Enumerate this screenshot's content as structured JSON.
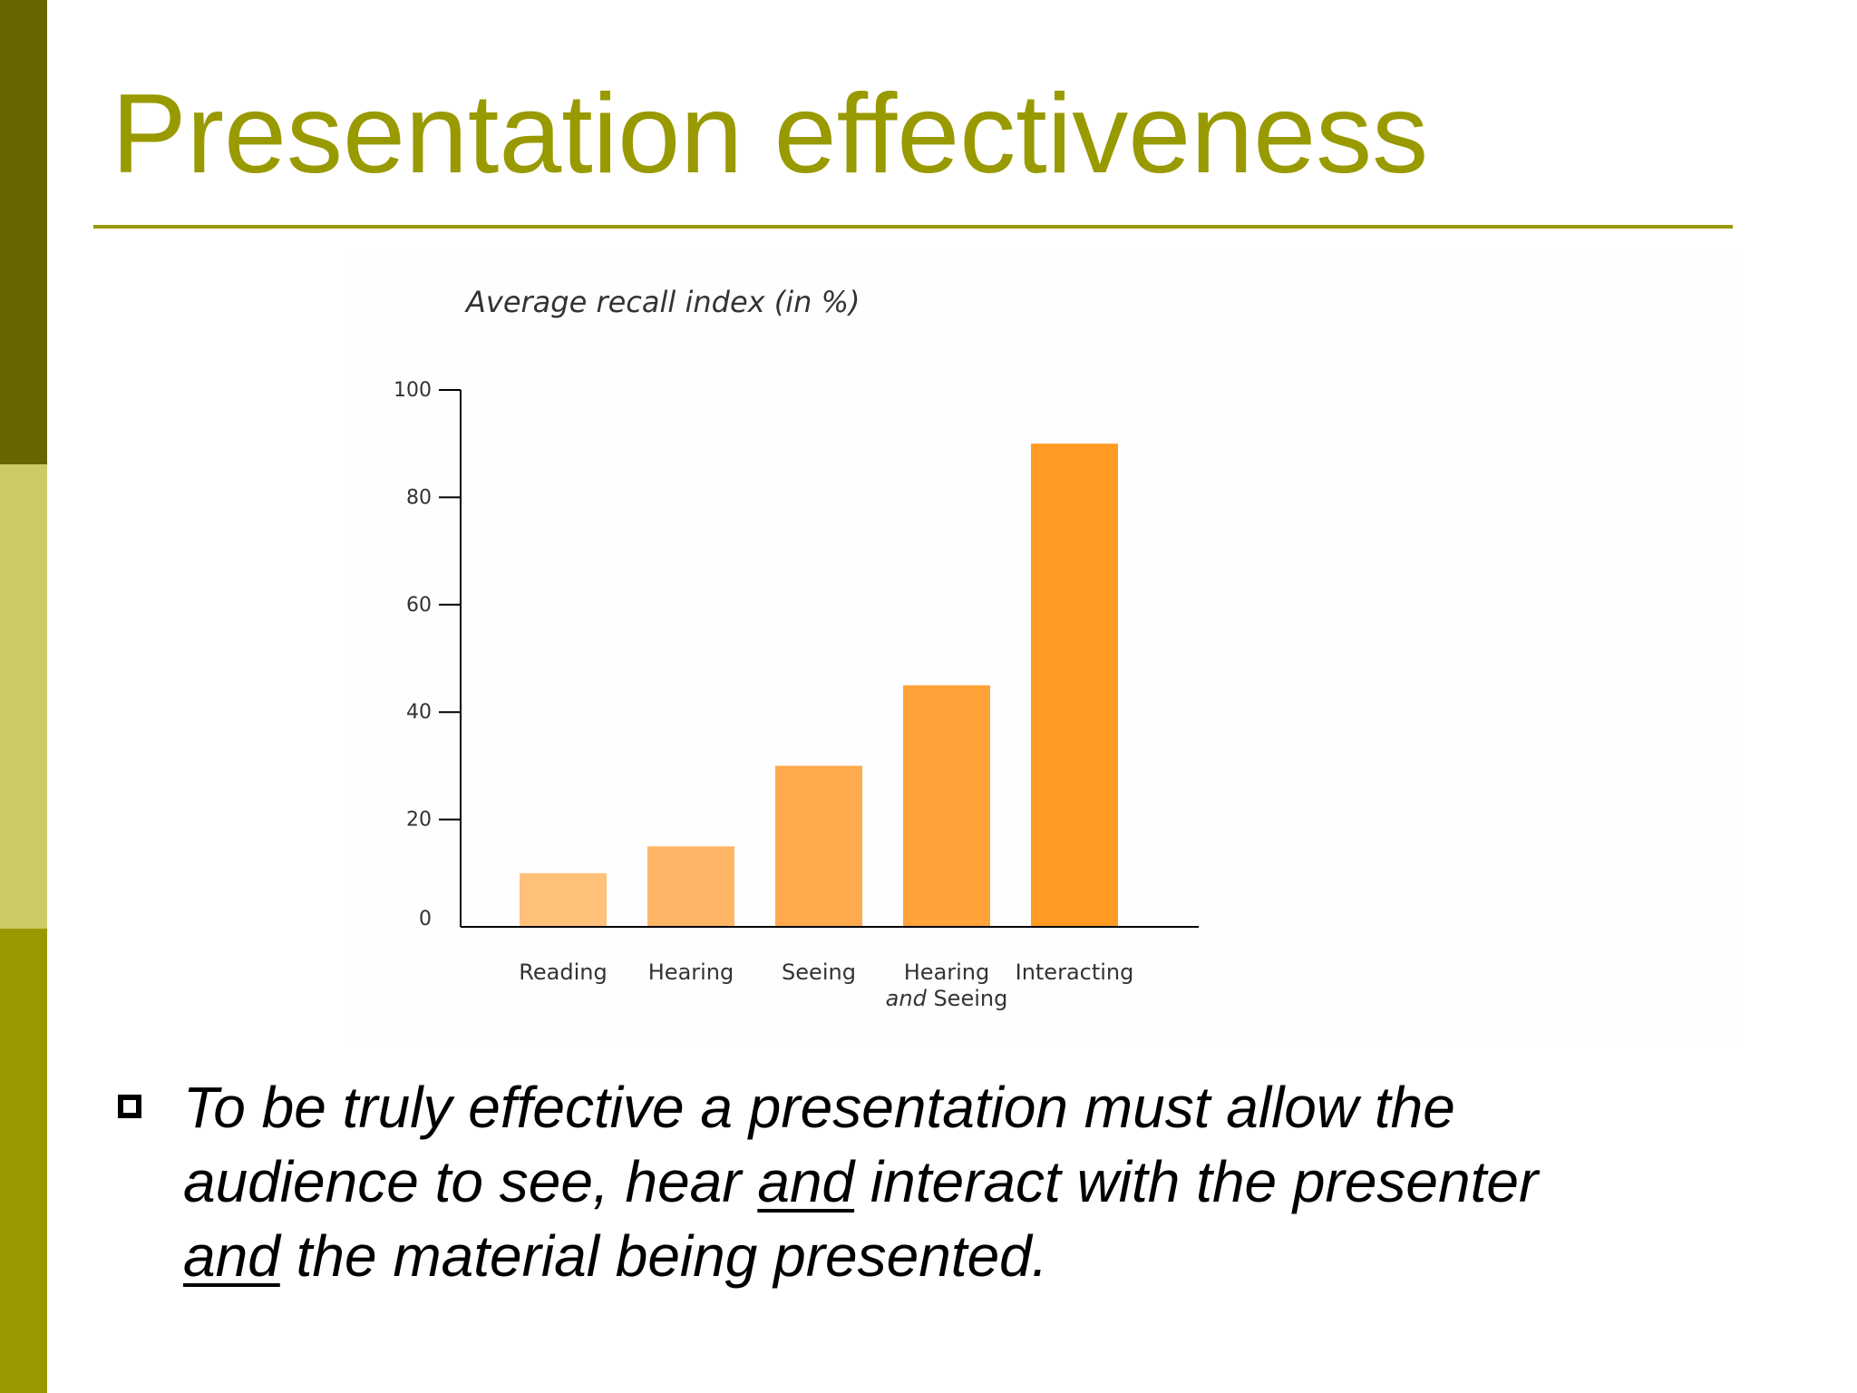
{
  "slide": {
    "title": "Presentation effectiveness",
    "colors": {
      "sidebar_top": "#666600",
      "sidebar_middle": "#CCCC66",
      "sidebar_bottom": "#999900",
      "title": "#999900",
      "rule": "#999900"
    }
  },
  "bullet": {
    "icon": "hollow-square-bullet-icon",
    "line1": "To be truly effective a presentation must allow the",
    "line2_pre": "audience to see, hear ",
    "line2_emph": "and",
    "line2_post": " interact with the presenter",
    "line3_emph": "and",
    "line3_post": " the material being presented."
  },
  "chart_data": {
    "type": "bar",
    "title": "Average recall index (in %)",
    "xlabel": "",
    "ylabel": "",
    "ylim": [
      0,
      100
    ],
    "yticks": [
      0,
      20,
      40,
      60,
      80,
      100
    ],
    "grid": false,
    "categories": [
      {
        "line1": "Reading",
        "line2": ""
      },
      {
        "line1": "Hearing",
        "line2": ""
      },
      {
        "line1": "Seeing",
        "line2": ""
      },
      {
        "line1": "Hearing",
        "line2_italic": "and",
        "line2": " Seeing"
      },
      {
        "line1": "Interacting",
        "line2": ""
      }
    ],
    "values": [
      10,
      15,
      30,
      45,
      90
    ],
    "bar_colors": [
      "#FFC07A",
      "#FFB566",
      "#FFAA4C",
      "#FFA23A",
      "#FF9A22"
    ],
    "axis_color": "#000000",
    "text_color": "#333333"
  }
}
